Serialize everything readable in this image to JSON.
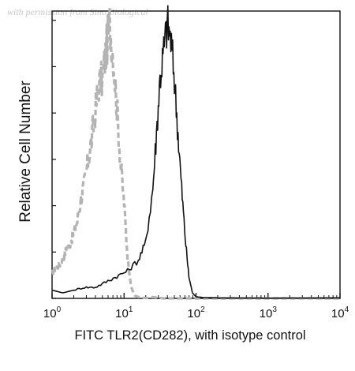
{
  "watermark": "with permission from Sino Biological",
  "colors": {
    "isotype": "#b3b3b3",
    "sample": "#111111",
    "axis": "#111111"
  },
  "chart_data": {
    "type": "histogram",
    "xscale": "log",
    "xlim": [
      1,
      10000
    ],
    "ylim": [
      0,
      100
    ],
    "xlabel": "FITC TLR2(CD282), with isotype control",
    "ylabel": "Relative Cell Number",
    "xticks": [
      {
        "value": 1,
        "base": "10",
        "exp": "0"
      },
      {
        "value": 10,
        "base": "10",
        "exp": "1"
      },
      {
        "value": 100,
        "base": "10",
        "exp": "2"
      },
      {
        "value": 1000,
        "base": "10",
        "exp": "3"
      },
      {
        "value": 10000,
        "base": "10",
        "exp": "4"
      }
    ],
    "grid": false,
    "legend": "none",
    "series": [
      {
        "style": "dashed-gray",
        "x": [
          1,
          1.12,
          1.26,
          1.41,
          1.58,
          1.78,
          2,
          2.24,
          2.51,
          2.82,
          3.16,
          3.55,
          3.98,
          4.47,
          5.01,
          5.62,
          6.31,
          7.08,
          7.94,
          8.91,
          10,
          11.2,
          12.6,
          14.1,
          15.8,
          17.8,
          20,
          25,
          35,
          50,
          100,
          1000,
          10000
        ],
        "y": [
          9,
          11,
          12,
          14,
          18,
          20,
          24,
          28,
          36,
          42,
          50,
          58,
          68,
          78,
          80,
          90,
          100,
          88,
          70,
          50,
          35,
          15,
          4,
          1,
          0.5,
          0.3,
          0.1,
          0.5,
          0,
          0,
          0,
          0,
          0
        ]
      },
      {
        "style": "solid-black",
        "x": [
          1,
          1.41,
          2,
          2.82,
          3.98,
          5.62,
          7.94,
          11.2,
          15.8,
          19.9,
          25.1,
          28.2,
          31.6,
          35.5,
          39.8,
          44.7,
          50.1,
          56.2,
          63.1,
          70.8,
          79.4,
          89.1,
          100,
          126,
          200,
          1000,
          10000
        ],
        "y": [
          3,
          2,
          3,
          4,
          4,
          6,
          8,
          10,
          14,
          20,
          40,
          60,
          80,
          90,
          100,
          94,
          80,
          60,
          40,
          22,
          8,
          2,
          0.6,
          0.3,
          0.2,
          0.1,
          0.2
        ]
      }
    ]
  }
}
